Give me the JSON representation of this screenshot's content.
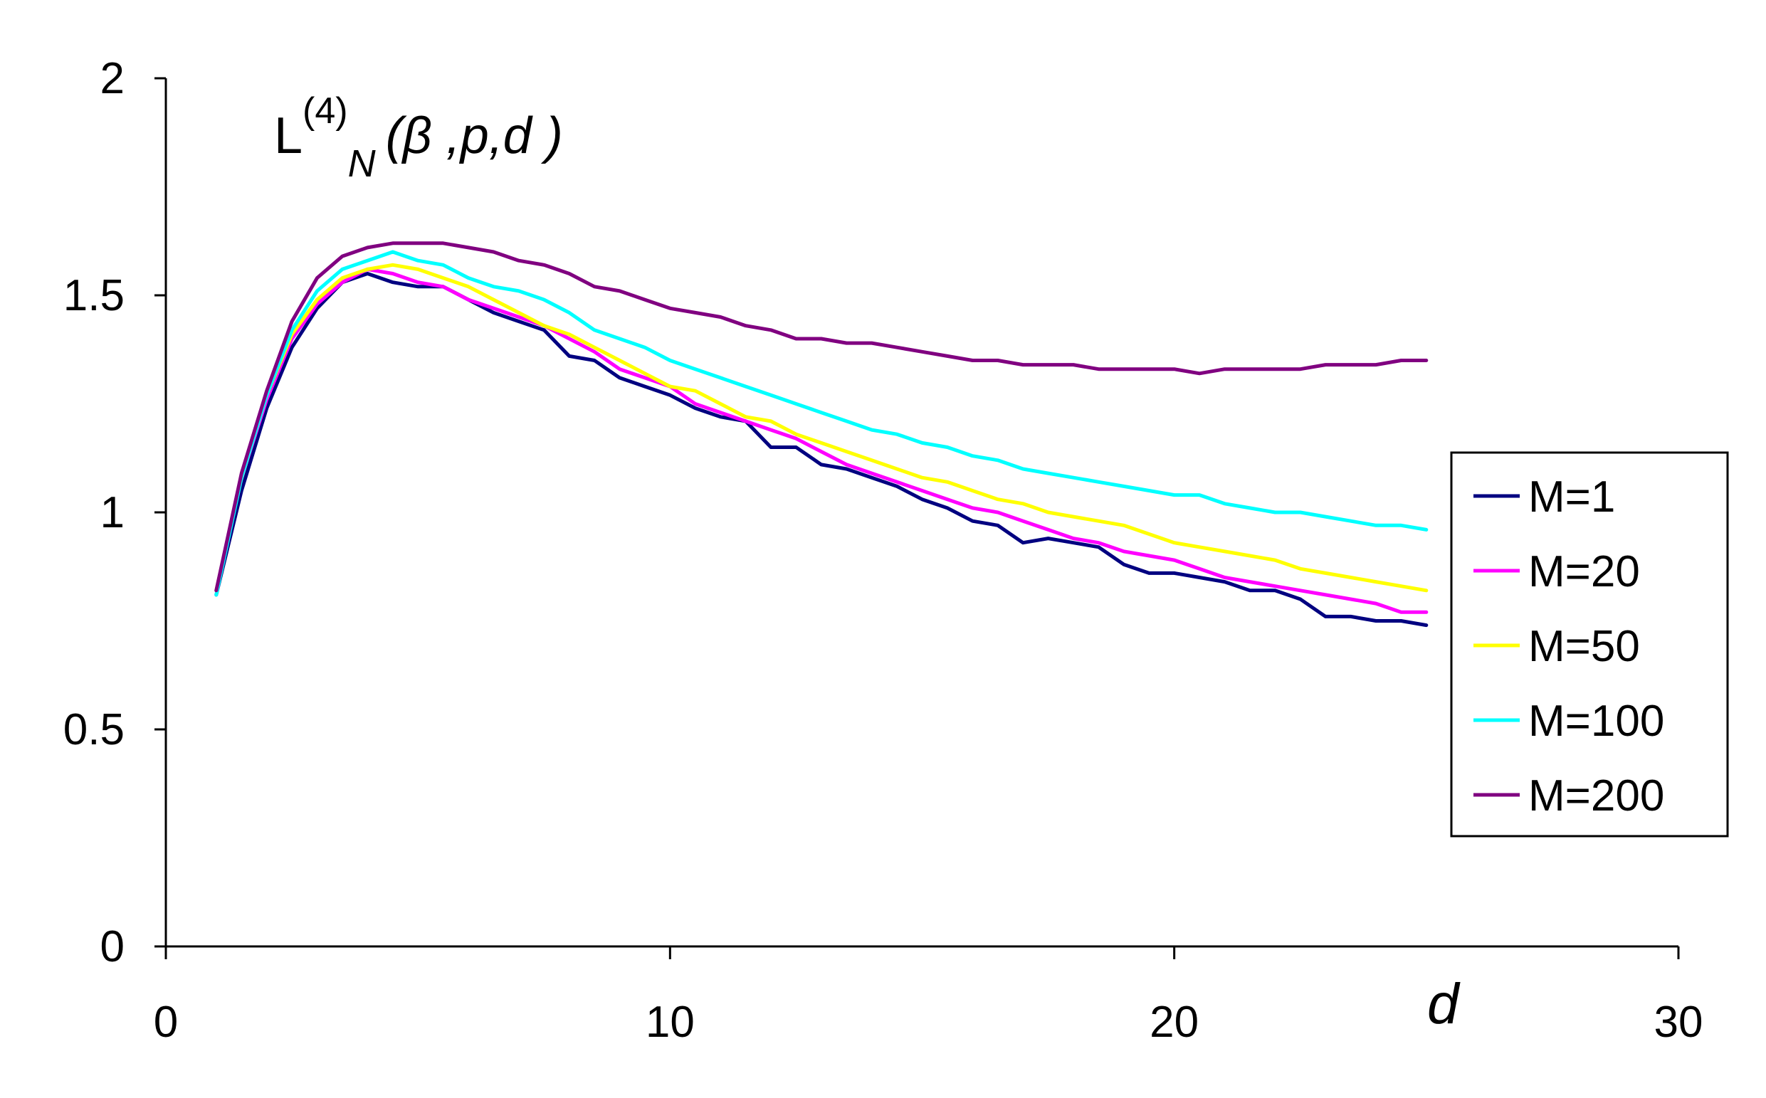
{
  "chart_data": {
    "type": "line",
    "title": "",
    "annotation": {
      "base": "L",
      "sup": "(4)",
      "sub": "N",
      "args": "(β ,p,d )"
    },
    "xlabel": "d",
    "ylabel": "",
    "xlim": [
      0,
      30
    ],
    "ylim": [
      0,
      2
    ],
    "xticks": [
      0,
      10,
      20,
      30
    ],
    "yticks": [
      0,
      0.5,
      1,
      1.5,
      2
    ],
    "xtick_labels": [
      "0",
      "10",
      "20",
      "30"
    ],
    "ytick_labels": [
      "0",
      "0.5",
      "1",
      "1.5",
      "2"
    ],
    "grid": false,
    "legend_position": "right",
    "series": [
      {
        "name": "M=1",
        "color": "#000080",
        "points": [
          [
            1,
            0.81
          ],
          [
            1.5,
            1.05
          ],
          [
            2,
            1.24
          ],
          [
            2.5,
            1.38
          ],
          [
            3,
            1.47
          ],
          [
            3.5,
            1.53
          ],
          [
            4,
            1.55
          ],
          [
            4.5,
            1.53
          ],
          [
            5,
            1.52
          ],
          [
            5.5,
            1.52
          ],
          [
            6,
            1.49
          ],
          [
            6.5,
            1.46
          ],
          [
            7,
            1.44
          ],
          [
            7.5,
            1.42
          ],
          [
            8,
            1.36
          ],
          [
            8.5,
            1.35
          ],
          [
            9,
            1.31
          ],
          [
            9.5,
            1.29
          ],
          [
            10,
            1.27
          ],
          [
            10.5,
            1.24
          ],
          [
            11,
            1.22
          ],
          [
            11.5,
            1.21
          ],
          [
            12,
            1.15
          ],
          [
            12.5,
            1.15
          ],
          [
            13,
            1.11
          ],
          [
            13.5,
            1.1
          ],
          [
            14,
            1.08
          ],
          [
            14.5,
            1.06
          ],
          [
            15,
            1.03
          ],
          [
            15.5,
            1.01
          ],
          [
            16,
            0.98
          ],
          [
            16.5,
            0.97
          ],
          [
            17,
            0.93
          ],
          [
            17.5,
            0.94
          ],
          [
            18,
            0.93
          ],
          [
            18.5,
            0.92
          ],
          [
            19,
            0.88
          ],
          [
            19.5,
            0.86
          ],
          [
            20,
            0.86
          ],
          [
            20.5,
            0.85
          ],
          [
            21,
            0.84
          ],
          [
            21.5,
            0.82
          ],
          [
            22,
            0.82
          ],
          [
            22.5,
            0.8
          ],
          [
            23,
            0.76
          ],
          [
            23.5,
            0.76
          ],
          [
            24,
            0.75
          ],
          [
            24.5,
            0.75
          ],
          [
            25,
            0.74
          ]
        ]
      },
      {
        "name": "M=20",
        "color": "#FF00FF",
        "points": [
          [
            1,
            0.82
          ],
          [
            1.5,
            1.08
          ],
          [
            2,
            1.26
          ],
          [
            2.5,
            1.4
          ],
          [
            3,
            1.48
          ],
          [
            3.5,
            1.53
          ],
          [
            4,
            1.56
          ],
          [
            4.5,
            1.55
          ],
          [
            5,
            1.53
          ],
          [
            5.5,
            1.52
          ],
          [
            6,
            1.49
          ],
          [
            6.5,
            1.47
          ],
          [
            7,
            1.45
          ],
          [
            7.5,
            1.43
          ],
          [
            8,
            1.4
          ],
          [
            8.5,
            1.37
          ],
          [
            9,
            1.33
          ],
          [
            9.5,
            1.31
          ],
          [
            10,
            1.29
          ],
          [
            10.5,
            1.25
          ],
          [
            11,
            1.23
          ],
          [
            11.5,
            1.21
          ],
          [
            12,
            1.19
          ],
          [
            12.5,
            1.17
          ],
          [
            13,
            1.14
          ],
          [
            13.5,
            1.11
          ],
          [
            14,
            1.09
          ],
          [
            14.5,
            1.07
          ],
          [
            15,
            1.05
          ],
          [
            15.5,
            1.03
          ],
          [
            16,
            1.01
          ],
          [
            16.5,
            1.0
          ],
          [
            17,
            0.98
          ],
          [
            17.5,
            0.96
          ],
          [
            18,
            0.94
          ],
          [
            18.5,
            0.93
          ],
          [
            19,
            0.91
          ],
          [
            19.5,
            0.9
          ],
          [
            20,
            0.89
          ],
          [
            20.5,
            0.87
          ],
          [
            21,
            0.85
          ],
          [
            21.5,
            0.84
          ],
          [
            22,
            0.83
          ],
          [
            22.5,
            0.82
          ],
          [
            23,
            0.81
          ],
          [
            23.5,
            0.8
          ],
          [
            24,
            0.79
          ],
          [
            24.5,
            0.77
          ],
          [
            25,
            0.77
          ]
        ]
      },
      {
        "name": "M=50",
        "color": "#FFFF00",
        "points": [
          [
            1,
            0.82
          ],
          [
            1.5,
            1.08
          ],
          [
            2,
            1.27
          ],
          [
            2.5,
            1.41
          ],
          [
            3,
            1.49
          ],
          [
            3.5,
            1.54
          ],
          [
            4,
            1.56
          ],
          [
            4.5,
            1.57
          ],
          [
            5,
            1.56
          ],
          [
            5.5,
            1.54
          ],
          [
            6,
            1.52
          ],
          [
            6.5,
            1.49
          ],
          [
            7,
            1.46
          ],
          [
            7.5,
            1.43
          ],
          [
            8,
            1.41
          ],
          [
            8.5,
            1.38
          ],
          [
            9,
            1.35
          ],
          [
            9.5,
            1.32
          ],
          [
            10,
            1.29
          ],
          [
            10.5,
            1.28
          ],
          [
            11,
            1.25
          ],
          [
            11.5,
            1.22
          ],
          [
            12,
            1.21
          ],
          [
            12.5,
            1.18
          ],
          [
            13,
            1.16
          ],
          [
            13.5,
            1.14
          ],
          [
            14,
            1.12
          ],
          [
            14.5,
            1.1
          ],
          [
            15,
            1.08
          ],
          [
            15.5,
            1.07
          ],
          [
            16,
            1.05
          ],
          [
            16.5,
            1.03
          ],
          [
            17,
            1.02
          ],
          [
            17.5,
            1.0
          ],
          [
            18,
            0.99
          ],
          [
            18.5,
            0.98
          ],
          [
            19,
            0.97
          ],
          [
            19.5,
            0.95
          ],
          [
            20,
            0.93
          ],
          [
            20.5,
            0.92
          ],
          [
            21,
            0.91
          ],
          [
            21.5,
            0.9
          ],
          [
            22,
            0.89
          ],
          [
            22.5,
            0.87
          ],
          [
            23,
            0.86
          ],
          [
            23.5,
            0.85
          ],
          [
            24,
            0.84
          ],
          [
            24.5,
            0.83
          ],
          [
            25,
            0.82
          ]
        ]
      },
      {
        "name": "M=100",
        "color": "#00FFFF",
        "points": [
          [
            1,
            0.81
          ],
          [
            1.5,
            1.08
          ],
          [
            2,
            1.27
          ],
          [
            2.5,
            1.42
          ],
          [
            3,
            1.51
          ],
          [
            3.5,
            1.56
          ],
          [
            4,
            1.58
          ],
          [
            4.5,
            1.6
          ],
          [
            5,
            1.58
          ],
          [
            5.5,
            1.57
          ],
          [
            6,
            1.54
          ],
          [
            6.5,
            1.52
          ],
          [
            7,
            1.51
          ],
          [
            7.5,
            1.49
          ],
          [
            8,
            1.46
          ],
          [
            8.5,
            1.42
          ],
          [
            9,
            1.4
          ],
          [
            9.5,
            1.38
          ],
          [
            10,
            1.35
          ],
          [
            10.5,
            1.33
          ],
          [
            11,
            1.31
          ],
          [
            11.5,
            1.29
          ],
          [
            12,
            1.27
          ],
          [
            12.5,
            1.25
          ],
          [
            13,
            1.23
          ],
          [
            13.5,
            1.21
          ],
          [
            14,
            1.19
          ],
          [
            14.5,
            1.18
          ],
          [
            15,
            1.16
          ],
          [
            15.5,
            1.15
          ],
          [
            16,
            1.13
          ],
          [
            16.5,
            1.12
          ],
          [
            17,
            1.1
          ],
          [
            17.5,
            1.09
          ],
          [
            18,
            1.08
          ],
          [
            18.5,
            1.07
          ],
          [
            19,
            1.06
          ],
          [
            19.5,
            1.05
          ],
          [
            20,
            1.04
          ],
          [
            20.5,
            1.04
          ],
          [
            21,
            1.02
          ],
          [
            21.5,
            1.01
          ],
          [
            22,
            1.0
          ],
          [
            22.5,
            1.0
          ],
          [
            23,
            0.99
          ],
          [
            23.5,
            0.98
          ],
          [
            24,
            0.97
          ],
          [
            24.5,
            0.97
          ],
          [
            25,
            0.96
          ]
        ]
      },
      {
        "name": "M=200",
        "color": "#800080",
        "points": [
          [
            1,
            0.82
          ],
          [
            1.5,
            1.09
          ],
          [
            2,
            1.28
          ],
          [
            2.5,
            1.44
          ],
          [
            3,
            1.54
          ],
          [
            3.5,
            1.59
          ],
          [
            4,
            1.61
          ],
          [
            4.5,
            1.62
          ],
          [
            5,
            1.62
          ],
          [
            5.5,
            1.62
          ],
          [
            6,
            1.61
          ],
          [
            6.5,
            1.6
          ],
          [
            7,
            1.58
          ],
          [
            7.5,
            1.57
          ],
          [
            8,
            1.55
          ],
          [
            8.5,
            1.52
          ],
          [
            9,
            1.51
          ],
          [
            9.5,
            1.49
          ],
          [
            10,
            1.47
          ],
          [
            10.5,
            1.46
          ],
          [
            11,
            1.45
          ],
          [
            11.5,
            1.43
          ],
          [
            12,
            1.42
          ],
          [
            12.5,
            1.4
          ],
          [
            13,
            1.4
          ],
          [
            13.5,
            1.39
          ],
          [
            14,
            1.39
          ],
          [
            14.5,
            1.38
          ],
          [
            15,
            1.37
          ],
          [
            15.5,
            1.36
          ],
          [
            16,
            1.35
          ],
          [
            16.5,
            1.35
          ],
          [
            17,
            1.34
          ],
          [
            17.5,
            1.34
          ],
          [
            18,
            1.34
          ],
          [
            18.5,
            1.33
          ],
          [
            19,
            1.33
          ],
          [
            19.5,
            1.33
          ],
          [
            20,
            1.33
          ],
          [
            20.5,
            1.32
          ],
          [
            21,
            1.33
          ],
          [
            21.5,
            1.33
          ],
          [
            22,
            1.33
          ],
          [
            22.5,
            1.33
          ],
          [
            23,
            1.34
          ],
          [
            23.5,
            1.34
          ],
          [
            24,
            1.34
          ],
          [
            24.5,
            1.35
          ],
          [
            25,
            1.35
          ]
        ]
      }
    ]
  }
}
